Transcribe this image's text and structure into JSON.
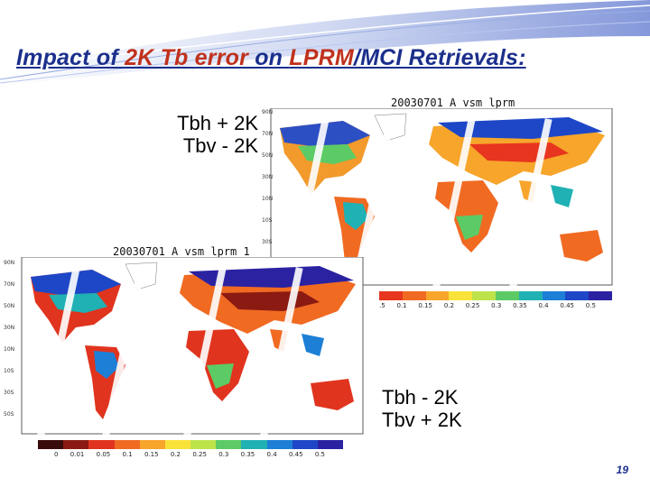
{
  "slide": {
    "title_parts": [
      "Impact of ",
      "2K Tb error",
      " on ",
      "LPRM",
      "/MCI Retrievals:"
    ],
    "page_number": "19"
  },
  "top": {
    "label_line1": "Tbh + 2K",
    "label_line2": "Tbv - 2K",
    "map_title": "20030701_A    vsm_lprm",
    "colorbar_ticks": [
      ".5",
      "0.1",
      "0.15",
      "0.2",
      "0.25",
      "0.3",
      "0.35",
      "0.4",
      "0.45",
      "0.5"
    ],
    "colorbar_colors": [
      "#e8351f",
      "#f06a22",
      "#f7a52b",
      "#f9e33a",
      "#bde34a",
      "#5ccb65",
      "#1fb1b3",
      "#1d7fd6",
      "#1d47c7",
      "#2b22a2"
    ]
  },
  "bottom": {
    "label_line1": "Tbh - 2K",
    "label_line2": "Tbv + 2K",
    "map_title": "20030701_A    vsm_lprm_1",
    "colorbar_ticks": [
      "0",
      "0.01",
      "0.05",
      "0.1",
      "0.15",
      "0.2",
      "0.25",
      "0.3",
      "0.35",
      "0.4",
      "0.45",
      "0.5"
    ],
    "colorbar_colors": [
      "#3a0b0b",
      "#8a1a12",
      "#e0341e",
      "#f06a22",
      "#f7a52b",
      "#f9e33a",
      "#bde34a",
      "#5ccb65",
      "#1fb1b3",
      "#1d7fd6",
      "#1d47c7",
      "#2b22a2"
    ]
  }
}
